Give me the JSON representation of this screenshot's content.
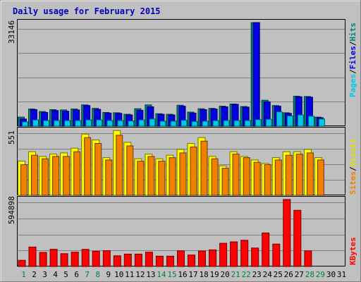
{
  "chart_data": [
    {
      "type": "bar",
      "title": "Daily usage for February 2015",
      "ymax_label": "33146",
      "legend": [
        "Pages",
        "Files",
        "Hits"
      ],
      "colors": {
        "Pages": "#00c8e8",
        "Files": "#0000e0",
        "Hits": "#008080"
      },
      "days": [
        1,
        2,
        3,
        4,
        5,
        6,
        7,
        8,
        9,
        10,
        11,
        12,
        13,
        14,
        15,
        16,
        17,
        18,
        19,
        20,
        21,
        22,
        23,
        24,
        25,
        26,
        27,
        28,
        29,
        30,
        31
      ],
      "series": [
        {
          "name": "Hits",
          "values": [
            2900,
            5500,
            4700,
            5300,
            5200,
            5500,
            6800,
            5700,
            4400,
            4300,
            3800,
            5600,
            6800,
            4000,
            3800,
            6700,
            4500,
            5600,
            5700,
            6400,
            7100,
            6300,
            33146,
            8300,
            6600,
            4300,
            9600,
            9500,
            2900,
            0,
            0
          ]
        },
        {
          "name": "Files",
          "values": [
            2300,
            5300,
            4400,
            5000,
            4800,
            5200,
            6600,
            5400,
            4200,
            4100,
            3600,
            5100,
            6200,
            3800,
            3600,
            6400,
            4200,
            5300,
            5500,
            6200,
            7000,
            6100,
            33146,
            7800,
            6400,
            4100,
            9400,
            9300,
            2700,
            0,
            0
          ]
        },
        {
          "name": "Pages",
          "values": [
            1400,
            2000,
            1800,
            1800,
            1800,
            1800,
            2000,
            2000,
            1800,
            1800,
            1700,
            2000,
            2300,
            1600,
            1600,
            1900,
            1500,
            1600,
            1800,
            1800,
            1800,
            1800,
            2100,
            2200,
            4600,
            3300,
            3600,
            3200,
            2300,
            0,
            0
          ]
        }
      ]
    },
    {
      "type": "bar",
      "ymax_label": "551",
      "legend": [
        "Sites",
        "Visits"
      ],
      "colors": {
        "Sites": "#f08000",
        "Visits": "#ffff00"
      },
      "days": [
        1,
        2,
        3,
        4,
        5,
        6,
        7,
        8,
        9,
        10,
        11,
        12,
        13,
        14,
        15,
        16,
        17,
        18,
        19,
        20,
        21,
        22,
        23,
        24,
        25,
        26,
        27,
        28,
        29,
        30,
        31
      ],
      "series": [
        {
          "name": "Visits",
          "values": [
            290,
            370,
            330,
            350,
            360,
            400,
            520,
            470,
            320,
            550,
            450,
            310,
            350,
            310,
            340,
            390,
            440,
            490,
            330,
            250,
            370,
            330,
            300,
            270,
            320,
            370,
            370,
            390,
            320,
            0,
            0
          ]
        },
        {
          "name": "Sites",
          "values": [
            260,
            340,
            310,
            330,
            330,
            370,
            490,
            440,
            300,
            510,
            420,
            290,
            330,
            290,
            320,
            360,
            410,
            460,
            310,
            230,
            350,
            320,
            280,
            260,
            300,
            340,
            350,
            360,
            300,
            0,
            0
          ]
        }
      ]
    },
    {
      "type": "bar",
      "ymax_label": "594898",
      "legend": [
        "KBytes"
      ],
      "colors": {
        "KBytes": "#ff0000"
      },
      "days": [
        1,
        2,
        3,
        4,
        5,
        6,
        7,
        8,
        9,
        10,
        11,
        12,
        13,
        14,
        15,
        16,
        17,
        18,
        19,
        20,
        21,
        22,
        23,
        24,
        25,
        26,
        27,
        28,
        29,
        30,
        31
      ],
      "series": [
        {
          "name": "KBytes",
          "values": [
            55000,
            173000,
            125000,
            153000,
            114000,
            127000,
            152000,
            135000,
            141000,
            95000,
            110000,
            110000,
            127000,
            92000,
            92000,
            139000,
            102000,
            138000,
            148000,
            206000,
            219000,
            233000,
            164000,
            298000,
            199000,
            594898,
            499000,
            139000,
            0,
            0,
            0
          ]
        }
      ]
    }
  ],
  "weekend_color": "#00805a",
  "weekend_days": [
    1,
    7,
    8,
    14,
    15,
    21,
    22,
    28,
    29
  ],
  "day_label_colors": {
    "weekday": "#000000",
    "weekend": "#008040"
  }
}
